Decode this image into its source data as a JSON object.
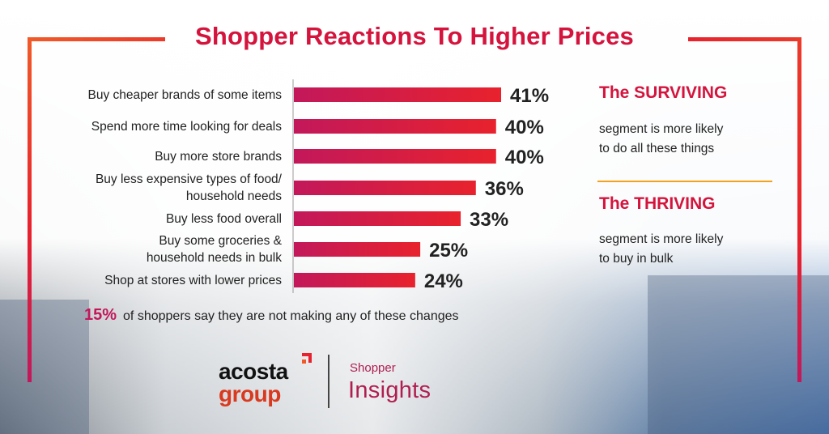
{
  "chart_data": {
    "type": "bar",
    "orientation": "horizontal",
    "title": "Shopper Reactions To Higher Prices",
    "categories": [
      [
        "Buy cheaper brands of some items"
      ],
      [
        "Spend more time looking for deals"
      ],
      [
        "Buy more store brands"
      ],
      [
        "Buy less expensive types of food/",
        "household needs"
      ],
      [
        "Buy less food overall"
      ],
      [
        "Buy some groceries &",
        "household needs in bulk"
      ],
      [
        "Shop at stores with lower prices"
      ]
    ],
    "values": [
      41,
      40,
      40,
      36,
      33,
      25,
      24
    ],
    "value_labels": [
      "41%",
      "40%",
      "40%",
      "36%",
      "33%",
      "25%",
      "24%"
    ],
    "xlim": [
      0,
      41
    ],
    "unit": "%",
    "grid": false,
    "bar_gradient": [
      "#c2185b",
      "#e8222d"
    ]
  },
  "sidebar": {
    "surviving_title": "The SURVIVING",
    "surviving_text": [
      "segment is more likely",
      "to do all these things"
    ],
    "thriving_title": "The THRIVING",
    "thriving_text": [
      "segment is more likely",
      "to buy in bulk"
    ]
  },
  "footnote": {
    "pct": "15%",
    "text": "of shoppers say they are not making any of these changes"
  },
  "logo": {
    "brand_line1": "acosta",
    "brand_line2": "group",
    "product_line1": "Shopper",
    "product_line2": "Insights"
  },
  "colors": {
    "accent": "#d4143d",
    "bar_start": "#c2185b",
    "bar_end": "#e8222d",
    "divider": "#f3a21b"
  }
}
